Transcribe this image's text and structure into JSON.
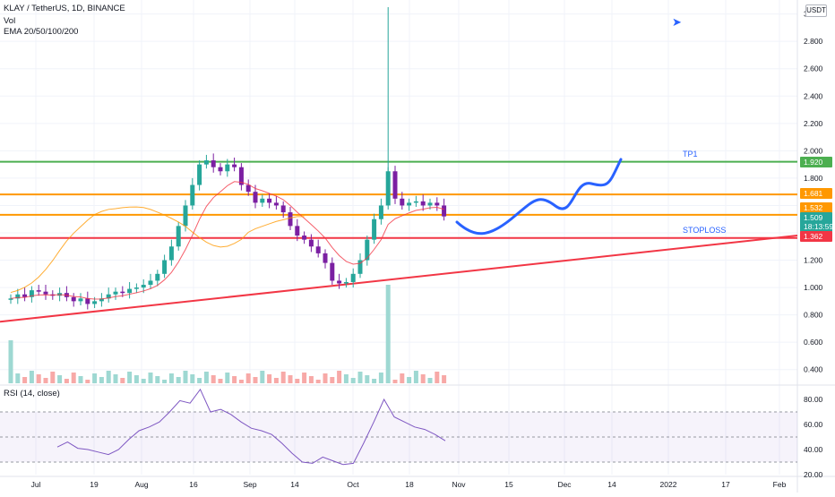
{
  "header": {
    "symbol_line": "KLAY / TetherUS, 1D, BINANCE",
    "volume_label": "Vol",
    "ema_label": "EMA 20/50/100/200"
  },
  "rsi_panel": {
    "title": "RSI (14, close)"
  },
  "currency_badge": "USDT",
  "icons": {
    "rocket": "rocket-icon"
  },
  "annotations": {
    "tp1_label": "TP1",
    "stoploss_label": "STOPLOSS",
    "colors": {
      "tp": "#4caf50",
      "resistance": "#ff9800",
      "stoploss": "#f23645",
      "projection": "#2962ff",
      "up": "#26a69a",
      "down": "#7b1fa2"
    }
  },
  "price_tags": {
    "tp1": "1.920",
    "resistance1": "1.681",
    "resistance2": "1.532",
    "last_price": "1.509",
    "countdown": "18:13:59",
    "stoploss": "1.362"
  },
  "chart_data": {
    "type": "candlestick",
    "title": "KLAY / TetherUS, 1D, BINANCE",
    "x_ticks": [
      "Jul",
      "19",
      "Aug",
      "16",
      "Sep",
      "14",
      "Oct",
      "18",
      "Nov",
      "15",
      "Dec",
      "14",
      "2022",
      "17",
      "Feb"
    ],
    "y_ticks": [
      "3.000",
      "2.800",
      "2.600",
      "2.400",
      "2.200",
      "2.000",
      "1.800",
      "1.600",
      "1.400",
      "1.200",
      "1.000",
      "0.800",
      "0.600",
      "0.400"
    ],
    "ylim": [
      0.3,
      3.05
    ],
    "ohlc_path": [
      0.92,
      0.95,
      0.93,
      0.98,
      0.97,
      0.95,
      0.94,
      0.96,
      0.93,
      0.9,
      0.92,
      0.88,
      0.9,
      0.92,
      0.95,
      0.97,
      0.96,
      0.99,
      1.0,
      1.02,
      1.05,
      1.1,
      1.2,
      1.3,
      1.45,
      1.6,
      1.75,
      1.9,
      1.93,
      1.88,
      1.85,
      1.9,
      1.88,
      1.75,
      1.7,
      1.62,
      1.65,
      1.62,
      1.6,
      1.55,
      1.45,
      1.38,
      1.35,
      1.3,
      1.25,
      1.18,
      1.05,
      1.03,
      1.04,
      1.1,
      1.2,
      1.35,
      1.5,
      1.6,
      1.85,
      1.65,
      1.6,
      1.62,
      1.63,
      1.6,
      1.62,
      1.6,
      1.52
    ],
    "series": [
      {
        "name": "RSI (14, close)",
        "values": [
          42,
          46,
          41,
          40,
          38,
          36,
          40,
          48,
          55,
          58,
          62,
          70,
          79,
          77,
          88,
          70,
          72,
          68,
          62,
          57,
          55,
          52,
          45,
          37,
          30,
          29,
          34,
          31,
          28,
          29,
          45,
          62,
          80,
          66,
          62,
          58,
          56,
          52,
          47
        ]
      }
    ],
    "rsi_ylim": [
      20,
      90
    ],
    "rsi_ticks": [
      "80.00",
      "60.00",
      "40.00",
      "20.00"
    ],
    "levels": [
      {
        "label": "TP1",
        "value": 1.92
      },
      {
        "value": 1.681
      },
      {
        "value": 1.532
      },
      {
        "label": "STOPLOSS",
        "value": 1.362
      }
    ]
  }
}
